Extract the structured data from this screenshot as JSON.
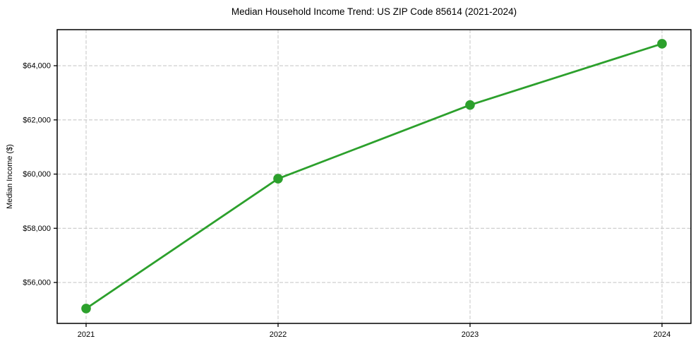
{
  "chart_data": {
    "type": "line",
    "title": "Median Household Income Trend: US ZIP Code 85614 (2021-2024)",
    "xlabel": "",
    "ylabel": "Median Income ($)",
    "categories": [
      "2021",
      "2022",
      "2023",
      "2024"
    ],
    "series": [
      {
        "name": "Median Household Income",
        "values": [
          55040,
          59830,
          62550,
          64810
        ]
      }
    ],
    "y_ticks": [
      {
        "value": 56000,
        "label": "$56,000"
      },
      {
        "value": 58000,
        "label": "$58,000"
      },
      {
        "value": 60000,
        "label": "$60,000"
      },
      {
        "value": 62000,
        "label": "$62,000"
      },
      {
        "value": 64000,
        "label": "$64,000"
      }
    ],
    "ylim": [
      54490,
      65330
    ],
    "grid": true,
    "grid_style": "dashed",
    "legend": "none",
    "colors": {
      "line": "#2ca02c",
      "marker": "#2ca02c",
      "grid": "#c9c9c9",
      "spine": "#000000",
      "text": "#000000",
      "background": "#ffffff"
    }
  }
}
